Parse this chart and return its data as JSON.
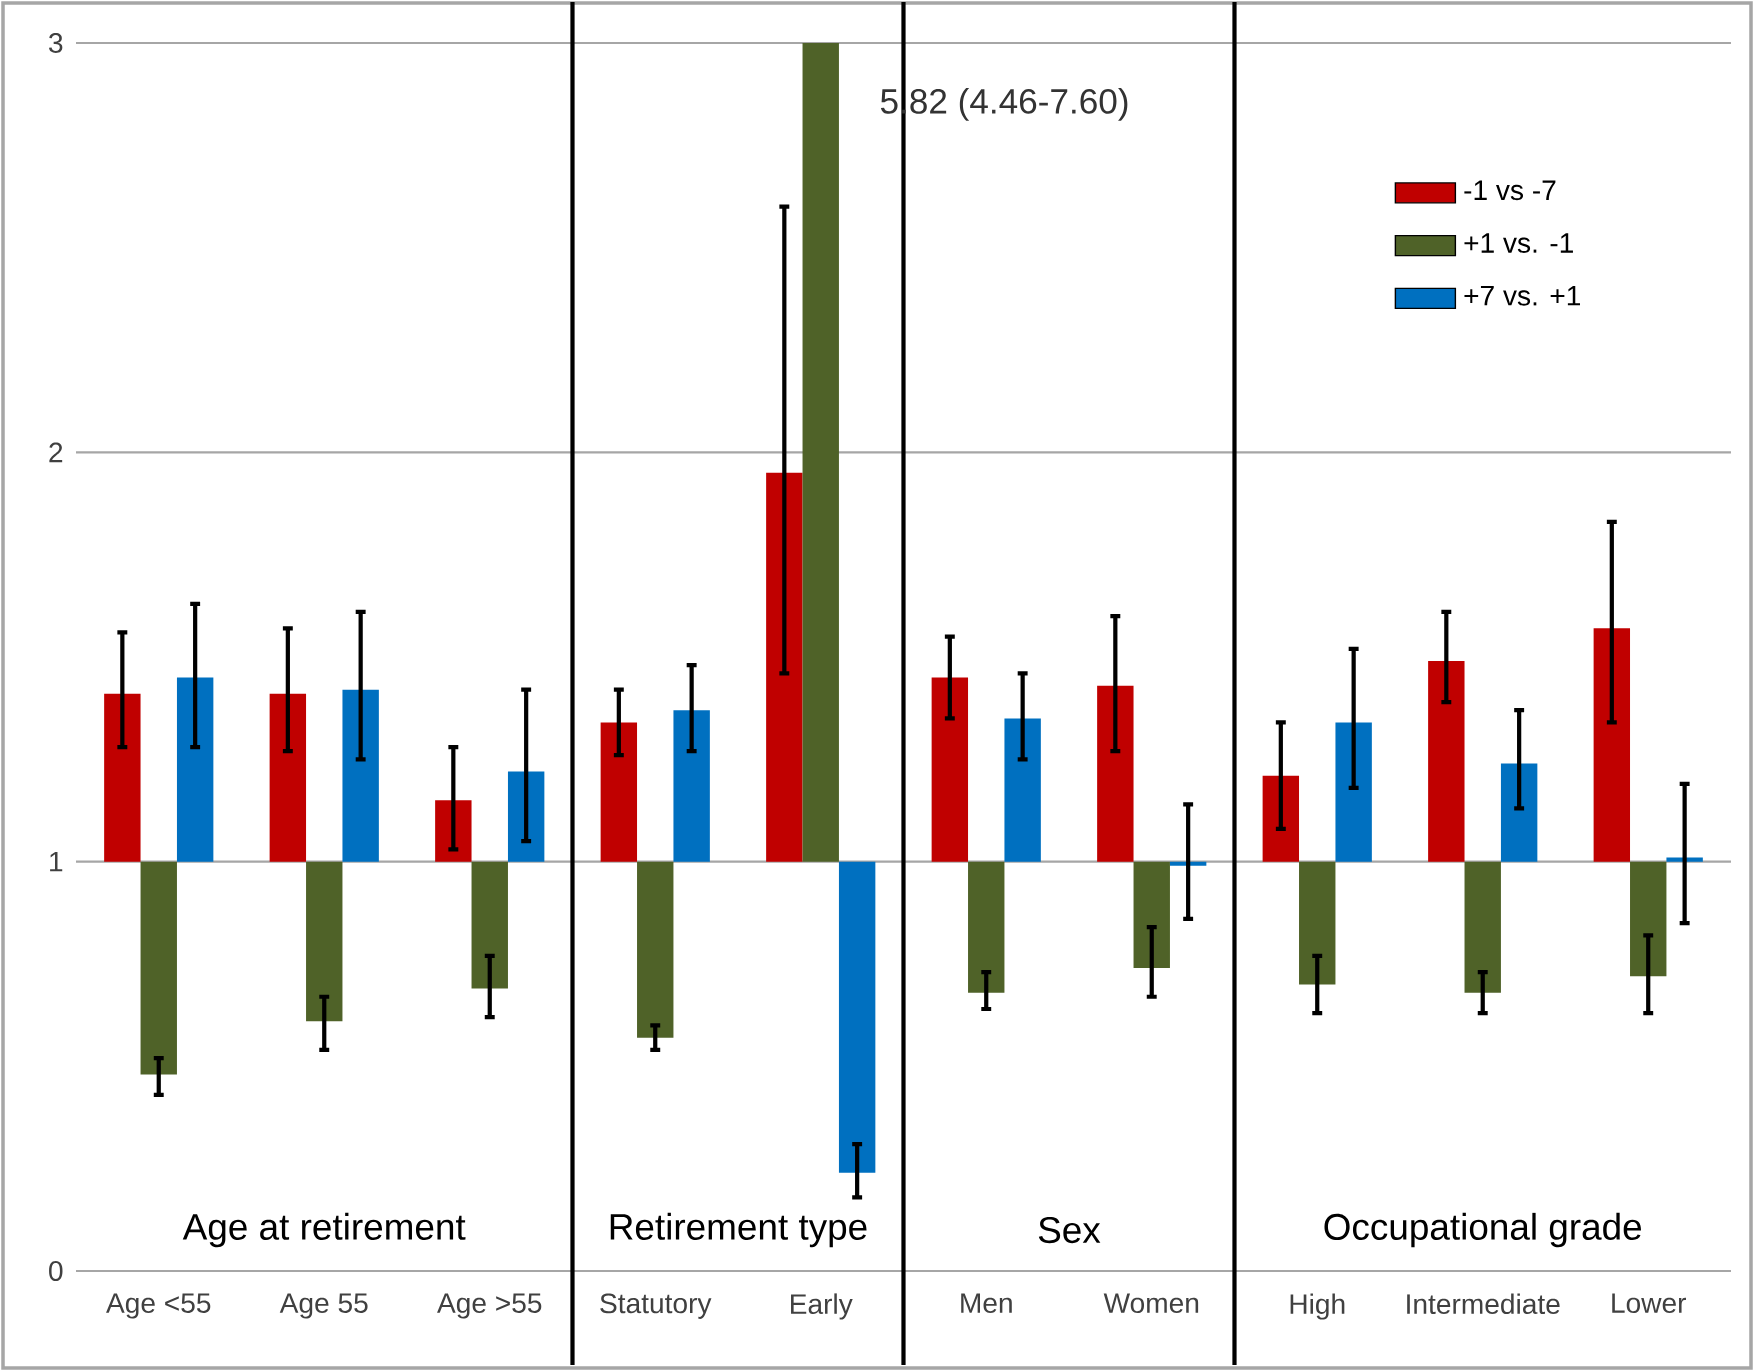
{
  "chart_data": {
    "type": "bar",
    "categories": [
      "Age <55",
      "Age 55",
      "Age >55",
      "Statutory",
      "Early",
      "Men",
      "Women",
      "High",
      "Intermediate",
      "Lower"
    ],
    "series": [
      {
        "name": "-1 vs -7",
        "color": "#c00000",
        "base": [
          1,
          1,
          1,
          1,
          1,
          1,
          1,
          1,
          1,
          1
        ],
        "values": [
          0.41,
          0.41,
          0.15,
          0.34,
          0.95,
          0.45,
          0.43,
          0.21,
          0.49,
          0.57
        ],
        "errors": [
          [
            1.28,
            1.56
          ],
          [
            1.27,
            1.57
          ],
          [
            1.03,
            1.28
          ],
          [
            1.26,
            1.42
          ],
          [
            1.46,
            2.6
          ],
          [
            1.35,
            1.55
          ],
          [
            1.27,
            1.6
          ],
          [
            1.08,
            1.34
          ],
          [
            1.39,
            1.61
          ],
          [
            1.34,
            1.83
          ]
        ]
      },
      {
        "name": "+1 vs. -1",
        "color": "#4f6228",
        "base": [
          1,
          1,
          1,
          1,
          1,
          1,
          1,
          1,
          1,
          1
        ],
        "values": [
          -0.52,
          -0.39,
          -0.31,
          -0.43,
          4.82,
          -0.32,
          -0.26,
          -0.3,
          -0.32,
          -0.28
        ],
        "errors": [
          [
            0.43,
            0.52
          ],
          [
            0.54,
            0.67
          ],
          [
            0.62,
            0.77
          ],
          [
            0.54,
            0.6
          ],
          null,
          [
            0.64,
            0.73
          ],
          [
            0.67,
            0.84
          ],
          [
            0.63,
            0.77
          ],
          [
            0.63,
            0.73
          ],
          [
            0.63,
            0.82
          ]
        ]
      },
      {
        "name": "+7 vs. +1",
        "color": "#0070c0",
        "base": [
          1,
          1,
          1,
          1,
          1,
          1,
          1,
          1,
          1,
          1
        ],
        "values": [
          0.45,
          0.42,
          0.22,
          0.37,
          -0.76,
          0.35,
          -0.01,
          0.34,
          0.24,
          0.01
        ],
        "errors": [
          [
            1.28,
            1.63
          ],
          [
            1.25,
            1.61
          ],
          [
            1.05,
            1.42
          ],
          [
            1.27,
            1.48
          ],
          [
            0.18,
            0.31
          ],
          [
            1.25,
            1.46
          ],
          [
            0.86,
            1.14
          ],
          [
            1.18,
            1.52
          ],
          [
            1.13,
            1.37
          ],
          [
            0.85,
            1.19
          ]
        ]
      }
    ],
    "annotations": [
      "Age at retirement",
      "Retirement type",
      "Sex",
      "Occupational grade",
      "5.82 (4.46-7.60)"
    ],
    "ylim": [
      0,
      3
    ],
    "yticks": [
      0,
      1,
      2,
      3
    ],
    "grid": "y",
    "legend": "top right"
  }
}
